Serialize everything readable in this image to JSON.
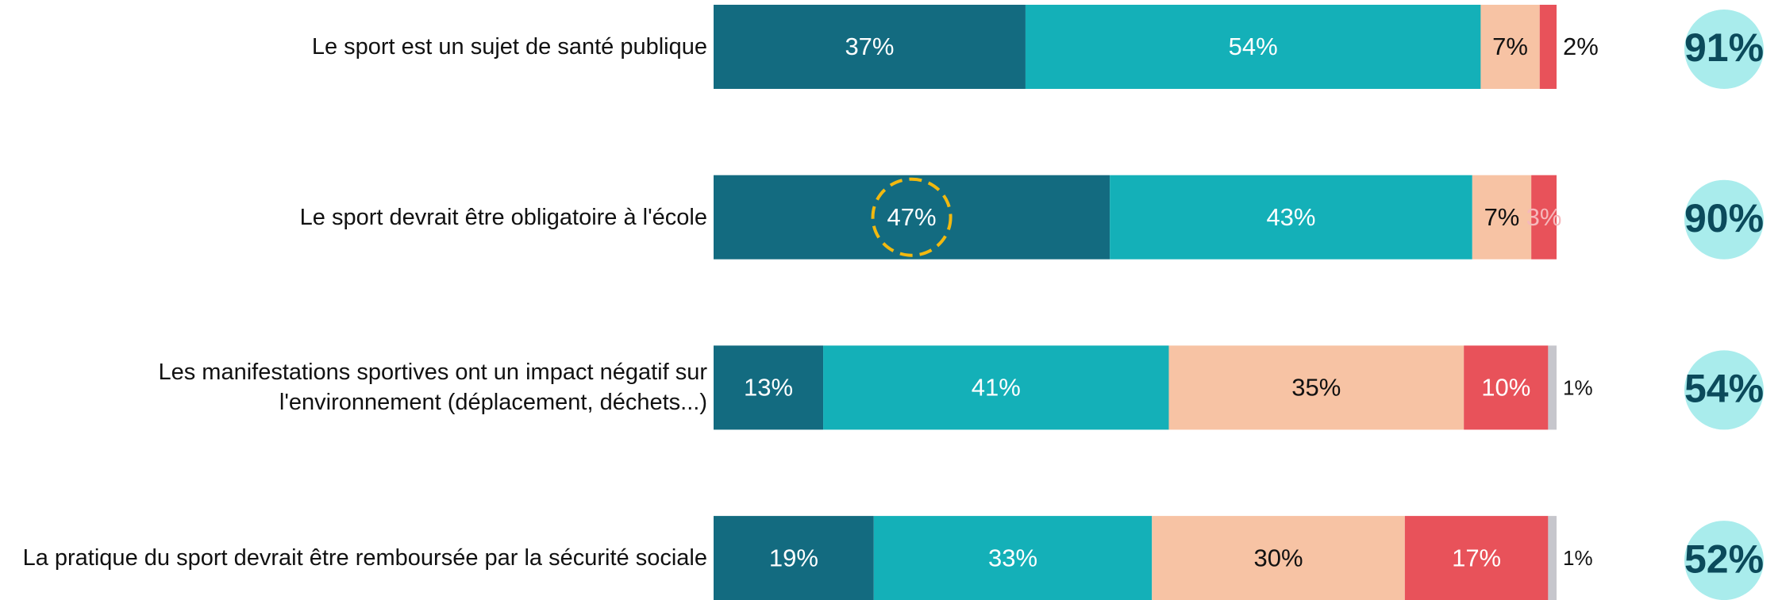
{
  "chart_data": {
    "type": "stacked-bar-horizontal",
    "categories": [
      "Le sport est un sujet de santé publique",
      "Le sport devrait être obligatoire à l'école",
      "Les manifestations sportives ont un impact négatif sur\nl'environnement (déplacement, déchets...)",
      "La pratique du sport devrait être remboursée par la sécurité sociale"
    ],
    "series": [
      {
        "color": "#136b80",
        "values": [
          37,
          47,
          13,
          19
        ],
        "value_labels": [
          "37%",
          "47%",
          "13%",
          "19%"
        ]
      },
      {
        "color": "#14b0b8",
        "values": [
          54,
          43,
          41,
          33
        ],
        "value_labels": [
          "54%",
          "43%",
          "41%",
          "33%"
        ]
      },
      {
        "color": "#f7c3a4",
        "values": [
          7,
          7,
          35,
          30
        ],
        "value_labels": [
          "7%",
          "7%",
          "35%",
          "30%"
        ]
      },
      {
        "color": "#e8525a",
        "values": [
          2,
          3,
          10,
          17
        ],
        "value_labels": [
          "2%",
          "3%",
          "10%",
          "17%"
        ]
      },
      {
        "color": "#c6c6cc",
        "values": [
          null,
          null,
          1,
          1
        ],
        "value_labels": [
          null,
          null,
          "1%",
          "1%"
        ]
      }
    ],
    "totals": {
      "color": "#a9ecec",
      "values": [
        91,
        90,
        54,
        52
      ],
      "value_labels": [
        "91%",
        "90%",
        "54%",
        "52%"
      ]
    },
    "highlight": {
      "series": 0,
      "category": 1,
      "color": "#f2b90f"
    },
    "xlim": [
      0,
      100
    ]
  }
}
